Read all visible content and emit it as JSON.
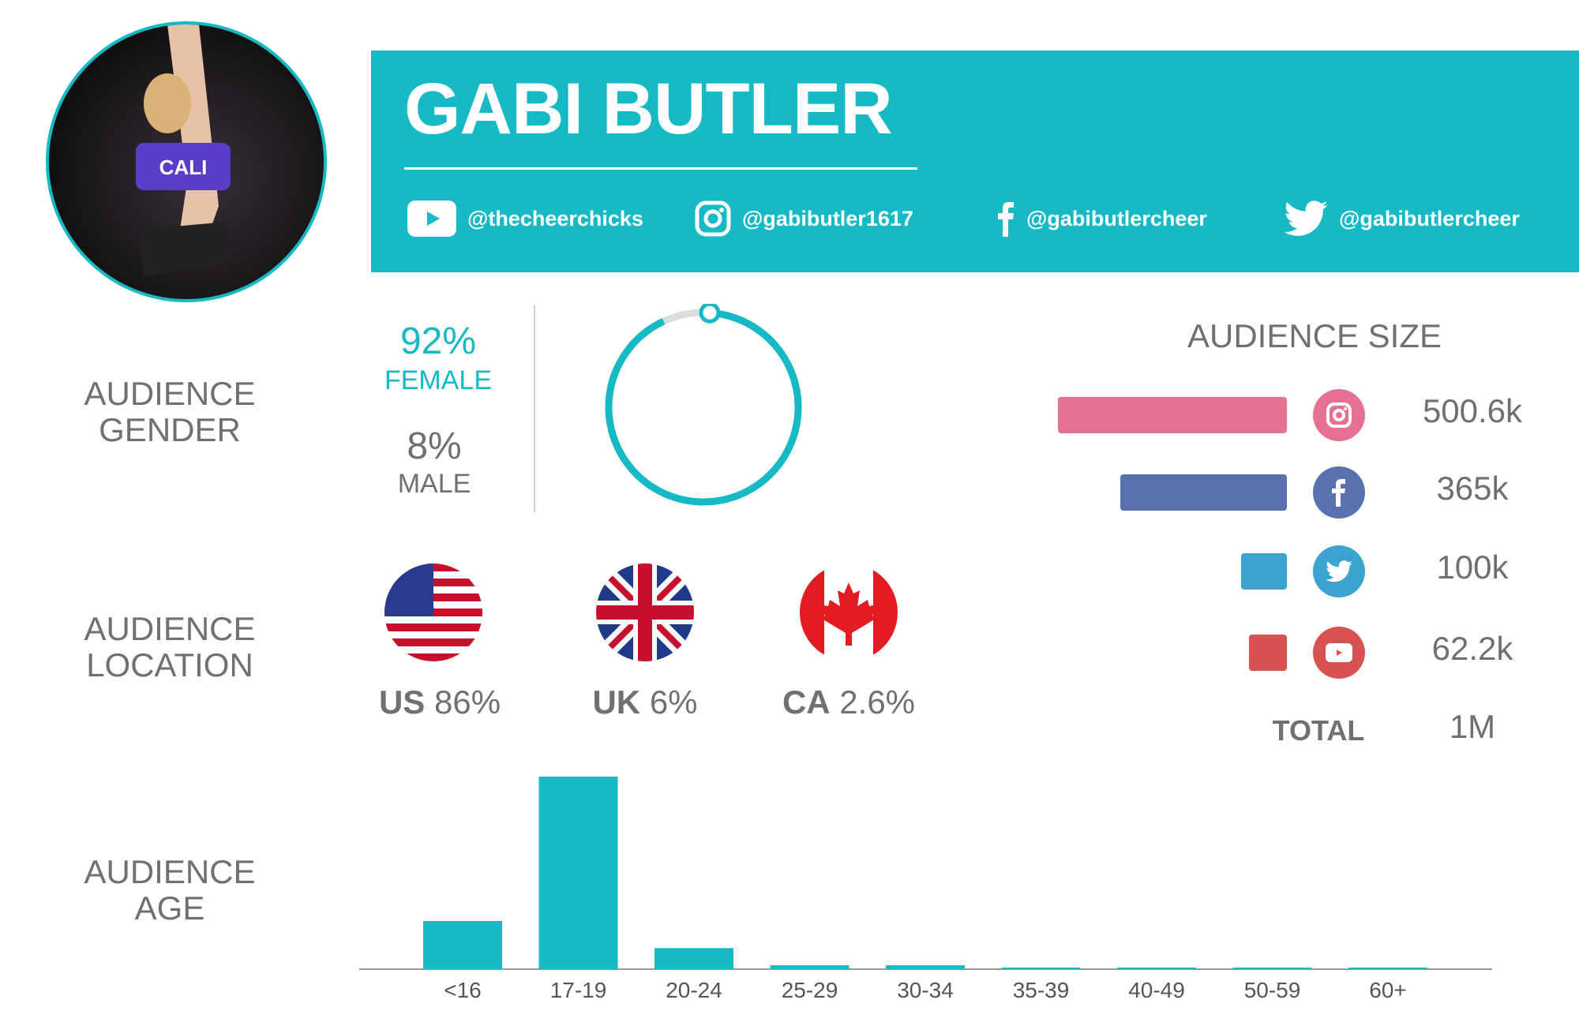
{
  "profile": {
    "name": "GABI BUTLER",
    "photo_jersey": "CALI"
  },
  "accent": "#15bac4",
  "socials": [
    {
      "platform": "youtube",
      "icon": "youtube-icon",
      "handle": "@thecheerchicks"
    },
    {
      "platform": "instagram",
      "icon": "instagram-icon",
      "handle": "@gabibutler1617"
    },
    {
      "platform": "facebook",
      "icon": "facebook-icon",
      "handle": "@gabibutlercheer"
    },
    {
      "platform": "twitter",
      "icon": "twitter-icon",
      "handle": "@gabibutlercheer"
    }
  ],
  "gender": {
    "label": "AUDIENCE GENDER",
    "female_pct": "92%",
    "female_label": "FEMALE",
    "male_pct": "8%",
    "male_label": "MALE",
    "female_fraction": 0.92
  },
  "location": {
    "label": "AUDIENCE LOCATION",
    "items": [
      {
        "code": "US",
        "pct": "86%"
      },
      {
        "code": "UK",
        "pct": "6%"
      },
      {
        "code": "CA",
        "pct": "2.6%"
      }
    ]
  },
  "audience_size": {
    "title": "AUDIENCE SIZE",
    "total_label": "TOTAL",
    "total": "1M",
    "items": [
      {
        "platform": "instagram",
        "value": 500.6,
        "label": "500.6k",
        "color": "#e57293"
      },
      {
        "platform": "facebook",
        "value": 365,
        "label": "365k",
        "color": "#5772ae"
      },
      {
        "platform": "twitter",
        "value": 100,
        "label": "100k",
        "color": "#3ba3d0"
      },
      {
        "platform": "youtube",
        "value": 62.2,
        "label": "62.2k",
        "color": "#d85252"
      }
    ]
  },
  "age": {
    "label": "AUDIENCE AGE"
  },
  "chart_data": {
    "type": "bar",
    "categories": [
      "<16",
      "17-19",
      "20-24",
      "25-29",
      "30-34",
      "35-39",
      "40-49",
      "50-59",
      "60+"
    ],
    "values": [
      16,
      64,
      7,
      1.3,
      1.3,
      0.3,
      0.3,
      0.3,
      0.3
    ],
    "title": "",
    "xlabel": "",
    "ylabel": ""
  }
}
